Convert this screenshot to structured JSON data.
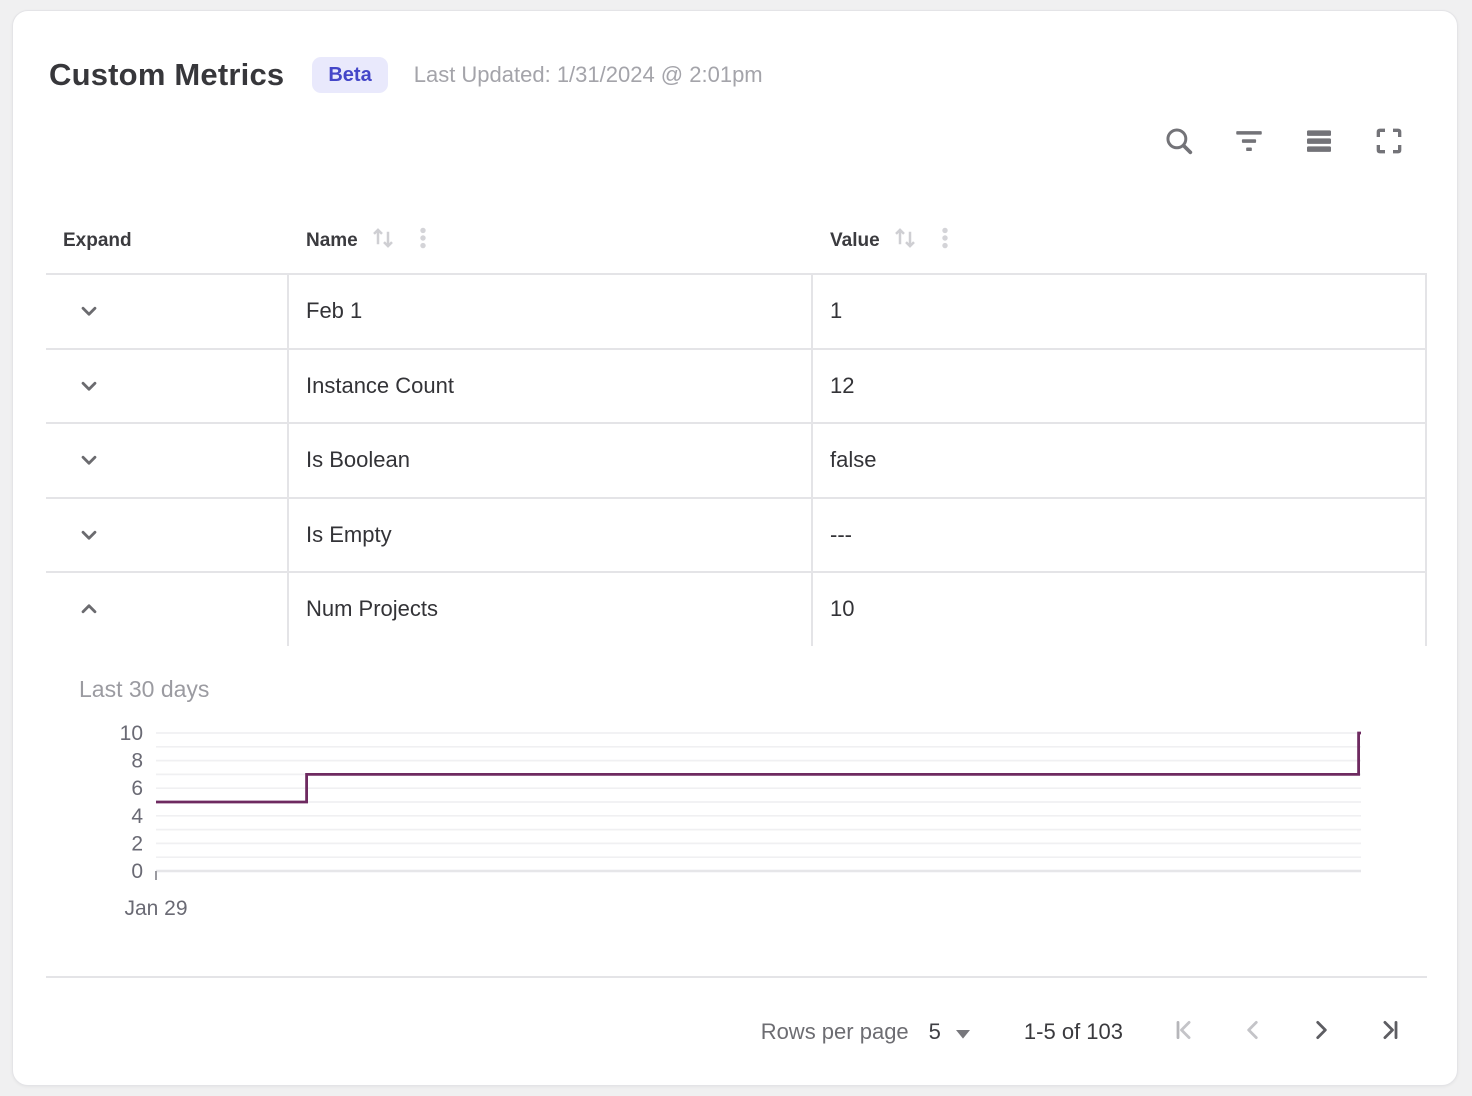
{
  "header": {
    "title": "Custom Metrics",
    "badge": "Beta",
    "last_updated": "Last Updated: 1/31/2024 @ 2:01pm"
  },
  "toolbar": {
    "icons": [
      "search",
      "filter",
      "density",
      "fullscreen"
    ]
  },
  "table": {
    "columns": [
      {
        "label": "Expand",
        "sortable": false
      },
      {
        "label": "Name",
        "sortable": true
      },
      {
        "label": "Value",
        "sortable": true
      }
    ],
    "rows": [
      {
        "name": "Feb 1",
        "value": "1",
        "expanded": false
      },
      {
        "name": "Instance Count",
        "value": "12",
        "expanded": false
      },
      {
        "name": "Is Boolean",
        "value": "false",
        "expanded": false
      },
      {
        "name": "Is Empty",
        "value": "---",
        "expanded": false
      },
      {
        "name": "Num Projects",
        "value": "10",
        "expanded": true
      }
    ]
  },
  "chart_data": {
    "type": "line",
    "variant": "step-after",
    "title": "Last 30 days",
    "x_tick_labels": [
      "Jan 29"
    ],
    "ylim": [
      0,
      10
    ],
    "yticks": [
      0,
      2,
      4,
      6,
      8,
      10
    ],
    "grid_step": 1,
    "line_color": "#6e2a60",
    "points": [
      {
        "x": 0,
        "y": 5
      },
      {
        "x": 0.125,
        "y": 7
      },
      {
        "x": 0.998,
        "y": 10
      }
    ]
  },
  "footer": {
    "rows_per_page_label": "Rows per page",
    "rows_per_page_value": "5",
    "range_text": "1-5 of 103",
    "pagination": {
      "first_enabled": false,
      "prev_enabled": false,
      "next_enabled": true,
      "last_enabled": true
    }
  },
  "colors": {
    "accent_badge_bg": "#e9e9fc",
    "accent_badge_text": "#4446c8",
    "chart_line": "#6e2a60",
    "row_border": "#e4e4e7",
    "icon_gray": "#737378",
    "icon_disabled": "#c4c4c8",
    "icon_enabled": "#5d5d62"
  }
}
